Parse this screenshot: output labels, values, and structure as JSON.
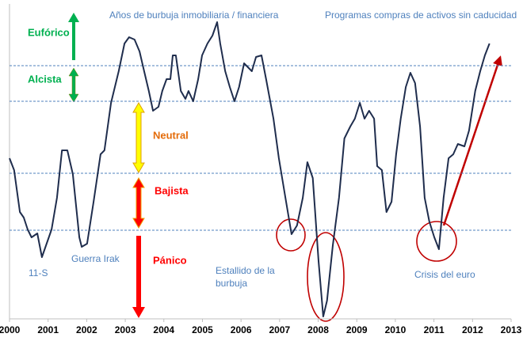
{
  "chart_data": {
    "type": "line",
    "x": [
      2000,
      2000.12,
      2000.27,
      2000.37,
      2000.47,
      2000.57,
      2000.72,
      2000.84,
      2001.09,
      2001.23,
      2001.36,
      2001.5,
      2001.64,
      2001.81,
      2001.87,
      2002.01,
      2002.18,
      2002.36,
      2002.46,
      2002.63,
      2002.83,
      2002.98,
      2003.1,
      2003.24,
      2003.37,
      2003.49,
      2003.61,
      2003.72,
      2003.86,
      2003.96,
      2004.07,
      2004.17,
      2004.23,
      2004.31,
      2004.44,
      2004.56,
      2004.64,
      2004.76,
      2004.89,
      2004.99,
      2005.13,
      2005.26,
      2005.38,
      2005.46,
      2005.59,
      2005.71,
      2005.83,
      2005.95,
      2006.08,
      2006.18,
      2006.28,
      2006.39,
      2006.53,
      2006.65,
      2006.84,
      2006.98,
      2007.15,
      2007.31,
      2007.45,
      2007.6,
      2007.72,
      2007.86,
      2008.01,
      2008.13,
      2008.23,
      2008.38,
      2008.54,
      2008.68,
      2008.83,
      2008.95,
      2009.08,
      2009.2,
      2009.32,
      2009.45,
      2009.53,
      2009.65,
      2009.77,
      2009.9,
      2010.02,
      2010.14,
      2010.27,
      2010.39,
      2010.51,
      2010.64,
      2010.76,
      2010.88,
      2011.01,
      2011.13,
      2011.25,
      2011.38,
      2011.5,
      2011.62,
      2011.79,
      2011.91,
      2012.07,
      2012.2,
      2012.32,
      2012.44
    ],
    "series": [
      {
        "color": "#1f2d4d",
        "values": [
          52.5,
          48.75,
          35.5,
          33.75,
          30,
          27.5,
          28.75,
          21.25,
          30,
          40,
          55,
          55,
          47.5,
          27.5,
          24.5,
          25.5,
          38.75,
          53.75,
          55,
          70,
          80,
          88.75,
          90.75,
          90,
          86.25,
          80,
          73.75,
          67.5,
          68.75,
          73.75,
          77.5,
          77.5,
          85,
          85,
          73.75,
          71.25,
          73.75,
          70.5,
          77.5,
          85,
          88.75,
          91.25,
          95.5,
          88.75,
          80,
          75,
          70.5,
          75,
          82.5,
          81.25,
          80,
          84.5,
          85,
          77.5,
          65,
          52.5,
          40,
          28.5,
          31.25,
          40,
          51.25,
          46.25,
          20,
          2.5,
          7.5,
          25,
          40,
          58.75,
          62.5,
          65,
          70,
          65,
          67.5,
          65,
          50,
          48.75,
          35.5,
          38.75,
          53.75,
          65,
          75,
          79.5,
          76.25,
          62.5,
          40,
          32.5,
          27.5,
          23.75,
          40,
          52.5,
          53.75,
          57,
          56.25,
          61.25,
          73.75,
          80,
          85,
          88.75
        ]
      }
    ],
    "xlim": [
      2000,
      2013
    ],
    "ylim": [
      0,
      100
    ],
    "xticks": [
      2000,
      2001,
      2002,
      2003,
      2004,
      2005,
      2006,
      2007,
      2008,
      2009,
      2010,
      2011,
      2012,
      2013
    ],
    "zone_lines": [
      81.75,
      70.5,
      47.75,
      29.75
    ],
    "zone_labels": [
      "Eufórico",
      "Alcista",
      "Neutral",
      "Bajista",
      "Pánico"
    ],
    "annotations": [
      "Años de burbuja inmobiliaria / financiera",
      "Programas compras de activos sin caducidad",
      "11-S",
      "Guerra Irak",
      "Estallido de la",
      "burbuja",
      "Crisis del euro"
    ]
  }
}
